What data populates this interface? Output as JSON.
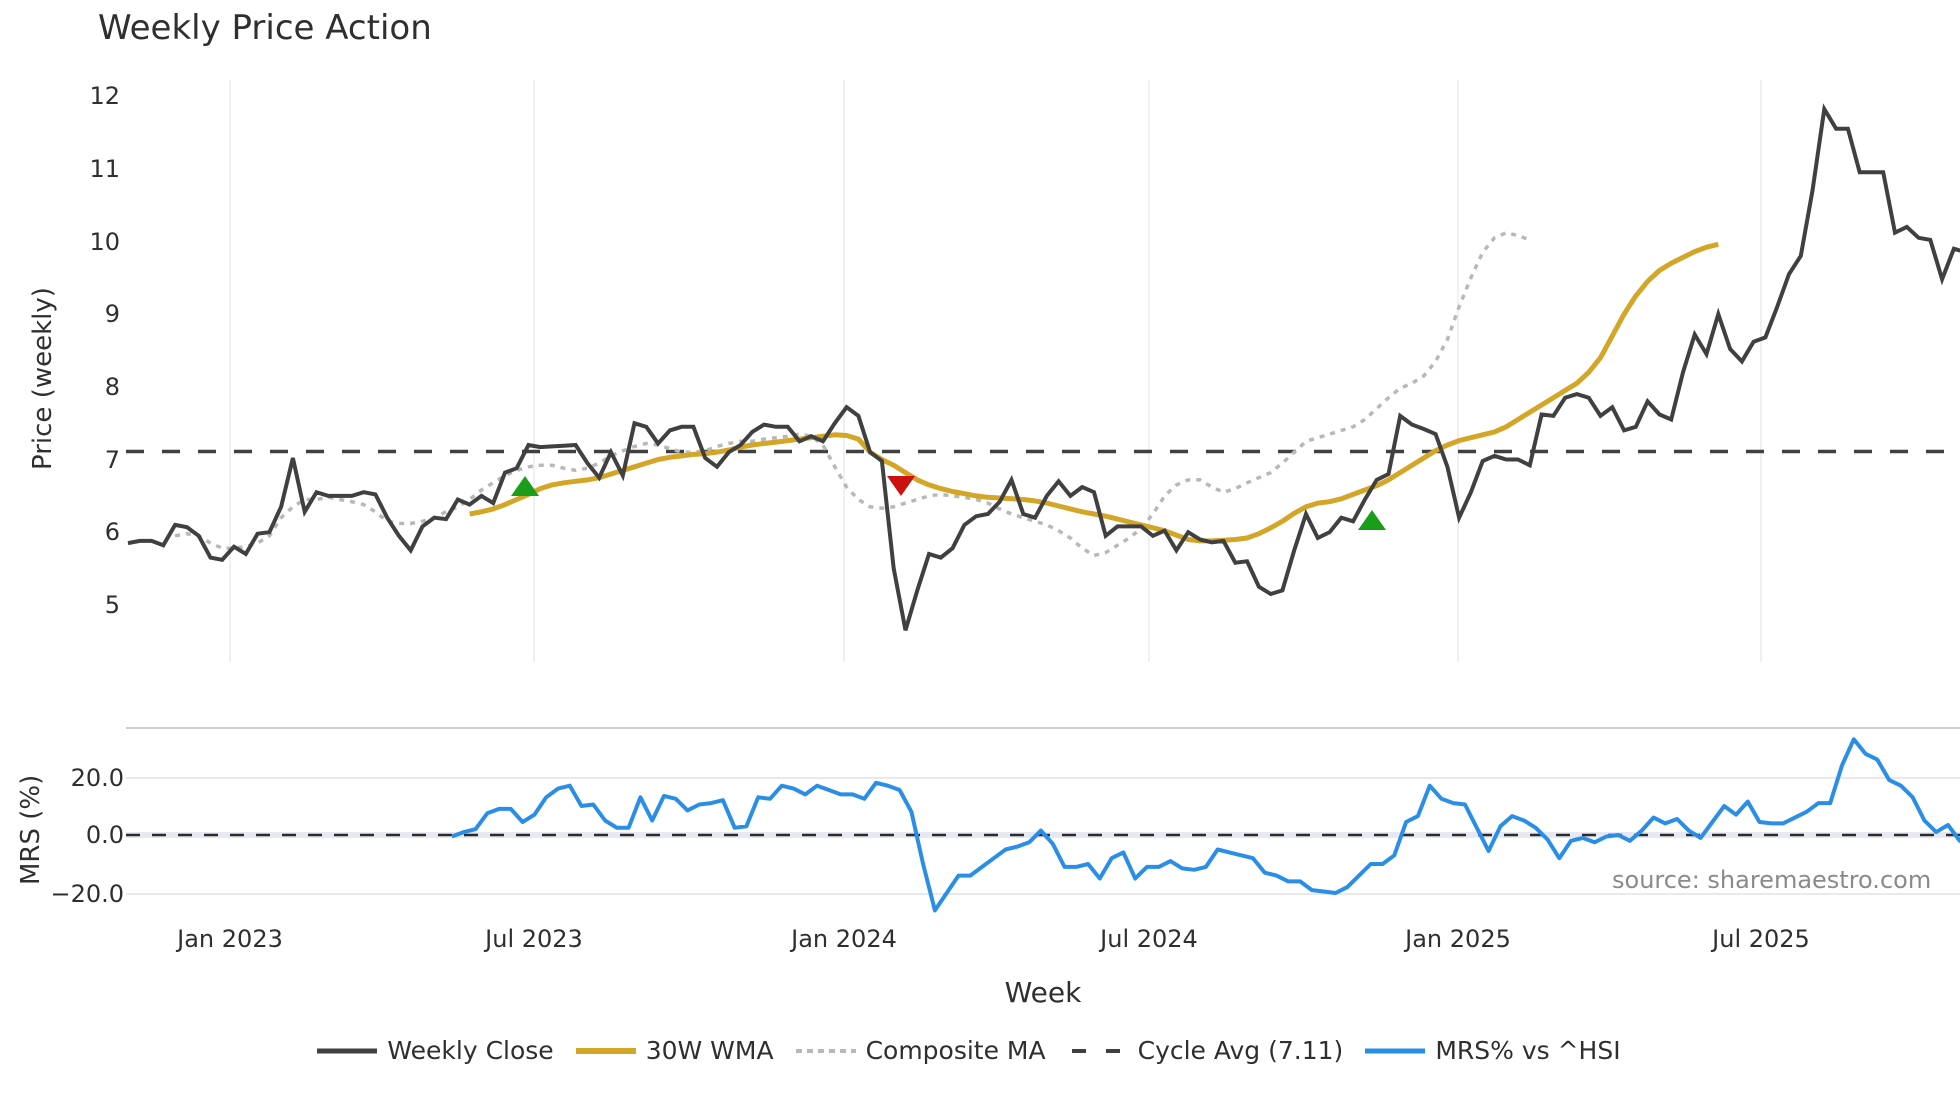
{
  "chart_data": [
    {
      "type": "line",
      "title": "Weekly Price Action",
      "xlabel": "Week",
      "ylabel": "Price (weekly)",
      "ylim": [
        4.2,
        12.2
      ],
      "yticks": [
        "12",
        "11",
        "10",
        "9",
        "8",
        "7",
        "6",
        "5"
      ],
      "xticks": [
        "Jan 2023",
        "Jul 2023",
        "Jan 2024",
        "Jul 2024",
        "Jan 2025",
        "Jul 2025"
      ],
      "grid": true,
      "legend_position": "bottom",
      "x_start": "Oct 2022",
      "x_step": "1 week",
      "series": [
        {
          "name": "Weekly Close",
          "color": "#404040",
          "values": [
            5.85,
            5.88,
            5.88,
            5.82,
            6.1,
            6.07,
            5.95,
            5.65,
            5.62,
            5.8,
            5.7,
            5.98,
            6.0,
            6.35,
            7.02,
            6.28,
            6.55,
            6.5,
            6.5,
            6.5,
            6.55,
            6.52,
            6.2,
            5.95,
            5.75,
            6.08,
            6.2,
            6.18,
            6.45,
            6.38,
            6.5,
            6.4,
            6.82,
            6.88,
            7.2,
            7.17,
            7.18,
            7.19,
            7.2,
            6.95,
            6.75,
            7.1,
            6.78,
            7.5,
            7.45,
            7.22,
            7.4,
            7.45,
            7.45,
            7.02,
            6.9,
            7.1,
            7.2,
            7.38,
            7.48,
            7.45,
            7.45,
            7.25,
            7.32,
            7.25,
            7.5,
            7.72,
            7.6,
            7.1,
            6.98,
            5.5,
            4.65,
            5.2,
            5.7,
            5.65,
            5.78,
            6.1,
            6.22,
            6.25,
            6.42,
            6.72,
            6.25,
            6.2,
            6.5,
            6.7,
            6.5,
            6.62,
            6.55,
            5.95,
            6.08,
            6.08,
            6.08,
            5.95,
            6.02,
            5.75,
            6.0,
            5.9,
            5.86,
            5.88,
            5.58,
            5.6,
            5.25,
            5.15,
            5.2,
            5.75,
            6.25,
            5.92,
            6.0,
            6.2,
            6.15,
            6.45,
            6.72,
            6.8,
            7.6,
            7.48,
            7.42,
            7.35,
            6.9,
            6.2,
            6.55,
            6.98,
            7.05,
            7.0,
            7.0,
            6.92,
            7.62,
            7.6,
            7.85,
            7.9,
            7.85,
            7.6,
            7.72,
            7.4,
            7.45,
            7.8,
            7.62,
            7.55,
            8.2,
            8.72,
            8.45,
            9.0,
            8.52,
            8.35,
            8.62,
            8.68,
            9.1,
            9.55,
            9.8,
            10.7,
            11.82,
            11.55,
            11.55,
            10.95,
            10.95,
            10.95,
            10.12,
            10.2,
            10.05,
            10.02,
            9.48,
            9.9,
            9.85
          ]
        },
        {
          "name": "30W WMA",
          "color": "#d4a628",
          "values": [
            null,
            null,
            null,
            null,
            null,
            null,
            null,
            null,
            null,
            null,
            null,
            null,
            null,
            null,
            null,
            null,
            null,
            null,
            null,
            null,
            null,
            null,
            null,
            null,
            null,
            null,
            null,
            null,
            null,
            6.25,
            6.28,
            6.32,
            6.38,
            6.45,
            6.52,
            6.6,
            6.65,
            6.68,
            6.7,
            6.72,
            6.75,
            6.8,
            6.85,
            6.9,
            6.95,
            7.0,
            7.03,
            7.05,
            7.07,
            7.08,
            7.1,
            7.13,
            7.17,
            7.2,
            7.22,
            7.24,
            7.26,
            7.28,
            7.3,
            7.32,
            7.34,
            7.33,
            7.28,
            7.1,
            7.0,
            6.92,
            6.82,
            6.72,
            6.65,
            6.6,
            6.56,
            6.53,
            6.5,
            6.48,
            6.47,
            6.46,
            6.45,
            6.43,
            6.4,
            6.36,
            6.32,
            6.28,
            6.25,
            6.22,
            6.18,
            6.14,
            6.1,
            6.06,
            6.02,
            5.96,
            5.9,
            5.88,
            5.88,
            5.89,
            5.9,
            5.92,
            5.98,
            6.06,
            6.15,
            6.26,
            6.35,
            6.4,
            6.42,
            6.46,
            6.52,
            6.58,
            6.64,
            6.72,
            6.82,
            6.92,
            7.02,
            7.12,
            7.2,
            7.26,
            7.3,
            7.34,
            7.38,
            7.45,
            7.55,
            7.65,
            7.75,
            7.85,
            7.95,
            8.05,
            8.2,
            8.4,
            8.7,
            9.0,
            9.25,
            9.45,
            9.6,
            9.7,
            9.78,
            9.86,
            9.92,
            9.96
          ]
        },
        {
          "name": "Composite MA",
          "color": "#b8b8b8",
          "dash": "dotted",
          "values": [
            null,
            null,
            null,
            null,
            5.95,
            5.98,
            5.95,
            5.85,
            5.78,
            5.78,
            5.8,
            5.85,
            5.95,
            6.2,
            6.35,
            6.45,
            6.45,
            6.48,
            6.45,
            6.42,
            6.38,
            6.28,
            6.15,
            6.12,
            6.12,
            6.15,
            6.2,
            6.28,
            6.35,
            6.45,
            6.58,
            6.68,
            6.78,
            6.85,
            6.9,
            6.92,
            6.92,
            6.88,
            6.85,
            6.88,
            6.95,
            7.05,
            7.12,
            7.18,
            7.22,
            7.2,
            7.15,
            7.1,
            7.1,
            7.12,
            7.18,
            7.22,
            7.25,
            7.25,
            7.28,
            7.3,
            7.32,
            7.35,
            7.32,
            7.2,
            6.9,
            6.62,
            6.45,
            6.35,
            6.33,
            6.35,
            6.4,
            6.45,
            6.5,
            6.52,
            6.5,
            6.48,
            6.45,
            6.4,
            6.32,
            6.25,
            6.2,
            6.15,
            6.1,
            6.02,
            5.92,
            5.78,
            5.68,
            5.72,
            5.82,
            5.92,
            6.05,
            6.25,
            6.5,
            6.65,
            6.72,
            6.72,
            6.62,
            6.55,
            6.6,
            6.68,
            6.75,
            6.82,
            6.95,
            7.1,
            7.25,
            7.3,
            7.35,
            7.4,
            7.45,
            7.55,
            7.7,
            7.85,
            7.98,
            8.05,
            8.15,
            8.35,
            8.65,
            9.1,
            9.5,
            9.85,
            10.05,
            10.12,
            10.08,
            10.02
          ]
        },
        {
          "name": "Cycle Avg (7.11)",
          "color": "#404040",
          "dash": "dashed",
          "value": 7.11
        }
      ],
      "markers": [
        {
          "type": "buy",
          "shape": "triangle-up",
          "color": "#1a9e1a",
          "x": "Jul 2023",
          "y": 6.55
        },
        {
          "type": "sell",
          "shape": "triangle-down",
          "color": "#cc1111",
          "x": "Feb 2024",
          "y": 6.7
        },
        {
          "type": "buy",
          "shape": "triangle-up",
          "color": "#1a9e1a",
          "x": "Nov 2024",
          "y": 6.1
        }
      ]
    },
    {
      "type": "line",
      "ylabel": "MRS (%)",
      "ylim": [
        -28,
        36
      ],
      "yticks": [
        "20.0",
        "0.0",
        "−20.0"
      ],
      "grid": true,
      "series": [
        {
          "name": "MRS% vs ^HSI",
          "color": "#2b8ee6",
          "values": [
            -0.5,
            1,
            2,
            7.5,
            9,
            9,
            4.5,
            7,
            13,
            16,
            17,
            10,
            10.5,
            5,
            2.5,
            2.5,
            13,
            5,
            13.5,
            12.5,
            8.5,
            10.5,
            11,
            12,
            2.5,
            3,
            13,
            12.5,
            17,
            16,
            14,
            17,
            15.5,
            14,
            14,
            12.5,
            18,
            17,
            15.5,
            8,
            -10,
            -26,
            -20,
            -14,
            -14,
            -11,
            -8,
            -5,
            -4,
            -2.5,
            1.5,
            -3,
            -11,
            -11,
            -10,
            -15,
            -8,
            -6,
            -15,
            -11,
            -11,
            -9,
            -11.5,
            -12,
            -11,
            -5,
            -6,
            -7,
            -8,
            -13,
            -14,
            -16,
            -16,
            -19,
            -19.5,
            -20,
            -18,
            -14,
            -10,
            -10,
            -7,
            4.5,
            6.5,
            17,
            12.5,
            11,
            10.5,
            2.5,
            -5.5,
            3,
            6.5,
            5,
            2.5,
            -1.5,
            -8,
            -2,
            -1,
            -2.5,
            -0.5,
            0,
            -2,
            1.5,
            6,
            4,
            5.5,
            1.5,
            -1,
            4.5,
            10,
            7,
            11.5,
            4.5,
            4,
            4,
            6,
            8,
            11,
            11,
            24,
            33,
            28,
            26,
            19,
            17,
            13,
            5,
            1,
            3.5,
            -2,
            1,
            0,
            1,
            -2
          ]
        }
      ],
      "reference_line": {
        "value": 0.0,
        "dash": "dashed",
        "color": "#2a2a2a"
      }
    }
  ],
  "header": {
    "title": "Weekly Price Action"
  },
  "price_axis": {
    "label": "Price (weekly)",
    "ticks": [
      "12",
      "11",
      "10",
      "9",
      "8",
      "7",
      "6",
      "5"
    ]
  },
  "mrs_axis": {
    "label": "MRS (%)",
    "ticks": [
      "20.0",
      "0.0",
      "−20.0"
    ]
  },
  "x_axis": {
    "label": "Week",
    "ticks": [
      "Jan 2023",
      "Jul 2023",
      "Jan 2024",
      "Jul 2024",
      "Jan 2025",
      "Jul 2025"
    ]
  },
  "source": "source: sharemaestro.com",
  "legend": [
    {
      "label": "Weekly Close",
      "color": "#404040",
      "style": "solid"
    },
    {
      "label": "30W WMA",
      "color": "#d4a628",
      "style": "solid"
    },
    {
      "label": "Composite MA",
      "color": "#b8b8b8",
      "style": "dotted"
    },
    {
      "label": "Cycle Avg (7.11)",
      "color": "#404040",
      "style": "dashed"
    },
    {
      "label": "MRS% vs ^HSI",
      "color": "#2b8ee6",
      "style": "solid"
    }
  ]
}
